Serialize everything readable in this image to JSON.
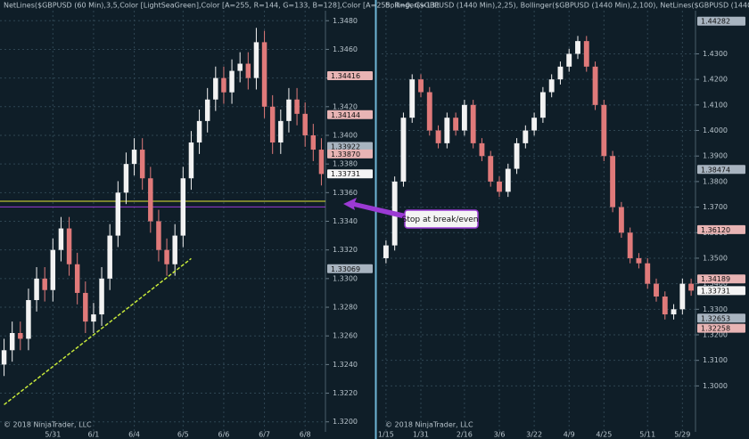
{
  "chart_data": [
    {
      "type": "candlestick",
      "title": "NetLines($GBPUSD (60 Min),3,5,Color [LightSeaGreen],Color [A=255, R=144, G=133, B=128],Color [A=255, R=0, G=131",
      "copyright": "© 2018 NinjaTrader, LLC",
      "categories": [
        null,
        null,
        null,
        null,
        null,
        null,
        "5/31",
        null,
        null,
        null,
        null,
        "6/1",
        null,
        null,
        null,
        null,
        "6/4",
        null,
        null,
        null,
        null,
        null,
        "6/5",
        null,
        null,
        null,
        null,
        "6/6",
        null,
        null,
        null,
        null,
        "6/7",
        null,
        null,
        null,
        null,
        "6/8",
        null,
        null
      ],
      "open": [
        1.324,
        1.325,
        1.3262,
        1.3258,
        1.3285,
        1.33,
        1.3292,
        1.332,
        1.3335,
        1.331,
        1.329,
        1.327,
        1.3275,
        1.33,
        1.333,
        1.336,
        1.338,
        1.339,
        1.337,
        1.334,
        1.332,
        1.331,
        1.333,
        1.337,
        1.3395,
        1.341,
        1.3425,
        1.344,
        1.343,
        1.3445,
        1.345,
        1.344,
        1.3465,
        1.342,
        1.3395,
        1.341,
        1.3425,
        1.3415,
        1.34,
        1.339
      ],
      "high": [
        1.3258,
        1.327,
        1.327,
        1.3293,
        1.3308,
        1.3308,
        1.3328,
        1.3343,
        1.3343,
        1.3318,
        1.3298,
        1.3283,
        1.3308,
        1.3338,
        1.3368,
        1.3388,
        1.3398,
        1.3398,
        1.3378,
        1.3348,
        1.3328,
        1.3338,
        1.3378,
        1.3403,
        1.3418,
        1.3433,
        1.3448,
        1.3448,
        1.3453,
        1.3458,
        1.3458,
        1.3475,
        1.3473,
        1.3428,
        1.3418,
        1.3433,
        1.3433,
        1.3423,
        1.3408,
        1.3398
      ],
      "low": [
        1.3232,
        1.3242,
        1.325,
        1.325,
        1.3277,
        1.3284,
        1.3284,
        1.3312,
        1.3302,
        1.3282,
        1.3262,
        1.3262,
        1.3267,
        1.3292,
        1.3322,
        1.3352,
        1.3372,
        1.3362,
        1.3332,
        1.3312,
        1.3302,
        1.3302,
        1.3322,
        1.3362,
        1.3387,
        1.3402,
        1.3417,
        1.3422,
        1.3422,
        1.3437,
        1.3432,
        1.3432,
        1.3412,
        1.3387,
        1.3387,
        1.3402,
        1.3407,
        1.3392,
        1.3382,
        1.3365
      ],
      "close": [
        1.325,
        1.3262,
        1.3258,
        1.3285,
        1.33,
        1.3292,
        1.332,
        1.3335,
        1.331,
        1.329,
        1.327,
        1.3275,
        1.33,
        1.333,
        1.336,
        1.338,
        1.339,
        1.337,
        1.334,
        1.332,
        1.331,
        1.333,
        1.337,
        1.3395,
        1.341,
        1.3425,
        1.344,
        1.343,
        1.3445,
        1.345,
        1.344,
        1.3465,
        1.342,
        1.3395,
        1.341,
        1.3425,
        1.3415,
        1.34,
        1.339,
        1.3373
      ],
      "up_color": "#f2f2f2",
      "down_color": "#e07a7a",
      "ylim": [
        1.3193,
        1.3487
      ],
      "yticks": [
        {
          "value": 1.32,
          "label": "1.3200"
        },
        {
          "value": 1.322,
          "label": "1.3220"
        },
        {
          "value": 1.324,
          "label": "1.3240"
        },
        {
          "value": 1.326,
          "label": "1.3260"
        },
        {
          "value": 1.328,
          "label": "1.3280"
        },
        {
          "value": 1.33,
          "label": "1.3300"
        },
        {
          "value": 1.332,
          "label": "1.3320"
        },
        {
          "value": 1.334,
          "label": "1.3340"
        },
        {
          "value": 1.336,
          "label": "1.3360"
        },
        {
          "value": 1.338,
          "label": "1.3380"
        },
        {
          "value": 1.34,
          "label": "1.3400"
        },
        {
          "value": 1.342,
          "label": "1.3420"
        },
        {
          "value": 1.344,
          "label": "1.3440"
        },
        {
          "value": 1.346,
          "label": "1.3460"
        },
        {
          "value": 1.348,
          "label": "1.3480"
        }
      ],
      "hlines": [
        {
          "value": 1.3354,
          "color": "#e6e632"
        },
        {
          "value": 1.335,
          "color": "#9b3ad4"
        }
      ],
      "trendline": {
        "x": [
          0,
          23
        ],
        "y": [
          1.3212,
          1.3314
        ],
        "color": "#c6e83a"
      },
      "price_tags": [
        {
          "value": 1.34416,
          "label": "1.34416",
          "color": "#e8b4b4"
        },
        {
          "value": 1.34144,
          "label": "1.34144",
          "color": "#e8b4b4"
        },
        {
          "value": 1.33922,
          "label": "1.33922",
          "color": "#a8b4c0"
        },
        {
          "value": 1.3387,
          "label": "1.33870",
          "color": "#e8b4b4"
        },
        {
          "value": 1.33731,
          "label": "1.33731",
          "color": "#f4f4f4"
        },
        {
          "value": 1.33069,
          "label": "1.33069",
          "color": "#a8b4c0"
        }
      ],
      "annotation": "Stop at break/even."
    },
    {
      "type": "candlestick",
      "title": "Bollinger($GBPUSD (1440 Min),2,25), Bollinger($GBPUSD (1440 Min),2,100), NetLines($GBPUSD (1440 Min),3,5,Colo",
      "copyright": "© 2018 NinjaTrader, LLC",
      "categories": [
        "1/15",
        null,
        null,
        null,
        "1/31",
        null,
        null,
        null,
        null,
        "2/16",
        null,
        null,
        null,
        "3/6",
        null,
        null,
        null,
        "3/22",
        null,
        null,
        null,
        "4/9",
        null,
        null,
        null,
        "4/25",
        null,
        null,
        null,
        null,
        "5/11",
        null,
        null,
        null,
        "5/29",
        null
      ],
      "open": [
        1.35,
        1.355,
        1.38,
        1.405,
        1.42,
        1.415,
        1.4,
        1.395,
        1.405,
        1.4,
        1.41,
        1.395,
        1.39,
        1.38,
        1.376,
        1.385,
        1.395,
        1.4,
        1.405,
        1.415,
        1.42,
        1.425,
        1.43,
        1.435,
        1.425,
        1.41,
        1.39,
        1.37,
        1.36,
        1.35,
        1.348,
        1.34,
        1.335,
        1.328,
        1.33,
        1.34
      ],
      "high": [
        1.357,
        1.382,
        1.407,
        1.422,
        1.422,
        1.417,
        1.402,
        1.407,
        1.407,
        1.412,
        1.412,
        1.397,
        1.392,
        1.382,
        1.387,
        1.397,
        1.402,
        1.407,
        1.417,
        1.422,
        1.427,
        1.432,
        1.437,
        1.437,
        1.427,
        1.412,
        1.392,
        1.372,
        1.362,
        1.352,
        1.35,
        1.342,
        1.337,
        1.332,
        1.342,
        1.342
      ],
      "low": [
        1.348,
        1.353,
        1.378,
        1.403,
        1.413,
        1.398,
        1.393,
        1.393,
        1.398,
        1.398,
        1.393,
        1.388,
        1.378,
        1.374,
        1.374,
        1.383,
        1.393,
        1.398,
        1.403,
        1.413,
        1.418,
        1.423,
        1.428,
        1.423,
        1.408,
        1.388,
        1.368,
        1.358,
        1.348,
        1.346,
        1.338,
        1.333,
        1.326,
        1.326,
        1.328,
        1.3353
      ],
      "close": [
        1.355,
        1.38,
        1.405,
        1.42,
        1.415,
        1.4,
        1.395,
        1.405,
        1.4,
        1.41,
        1.395,
        1.39,
        1.38,
        1.376,
        1.385,
        1.395,
        1.4,
        1.405,
        1.415,
        1.42,
        1.425,
        1.43,
        1.435,
        1.425,
        1.41,
        1.39,
        1.37,
        1.36,
        1.35,
        1.348,
        1.34,
        1.335,
        1.328,
        1.33,
        1.34,
        1.3373
      ],
      "up_color": "#f2f2f2",
      "down_color": "#e07a7a",
      "ylim": [
        1.282,
        1.4469
      ],
      "yticks": [
        {
          "value": 1.3,
          "label": "1.3000"
        },
        {
          "value": 1.31,
          "label": "1.3100"
        },
        {
          "value": 1.32,
          "label": "1.3200"
        },
        {
          "value": 1.33,
          "label": "1.3300"
        },
        {
          "value": 1.34,
          "label": "1.3400"
        },
        {
          "value": 1.35,
          "label": "1.3500"
        },
        {
          "value": 1.36,
          "label": "1.3600"
        },
        {
          "value": 1.37,
          "label": "1.3700"
        },
        {
          "value": 1.38,
          "label": "1.3800"
        },
        {
          "value": 1.39,
          "label": "1.3900"
        },
        {
          "value": 1.4,
          "label": "1.4000"
        },
        {
          "value": 1.41,
          "label": "1.4100"
        },
        {
          "value": 1.42,
          "label": "1.4200"
        },
        {
          "value": 1.43,
          "label": "1.4300"
        }
      ],
      "price_tags": [
        {
          "value": 1.44282,
          "label": "1.44282",
          "color": "#a8b4c0"
        },
        {
          "value": 1.38474,
          "label": "1.38474",
          "color": "#a8b4c0"
        },
        {
          "value": 1.3612,
          "label": "1.36120",
          "color": "#e8b4b4"
        },
        {
          "value": 1.34189,
          "label": "1.34189",
          "color": "#e8b4b4"
        },
        {
          "value": 1.33731,
          "label": "1.33731",
          "color": "#f4f4f4"
        },
        {
          "value": 1.32653,
          "label": "1.32653",
          "color": "#a8b4c0"
        },
        {
          "value": 1.32258,
          "label": "1.32258",
          "color": "#e8b4b4"
        }
      ]
    }
  ]
}
